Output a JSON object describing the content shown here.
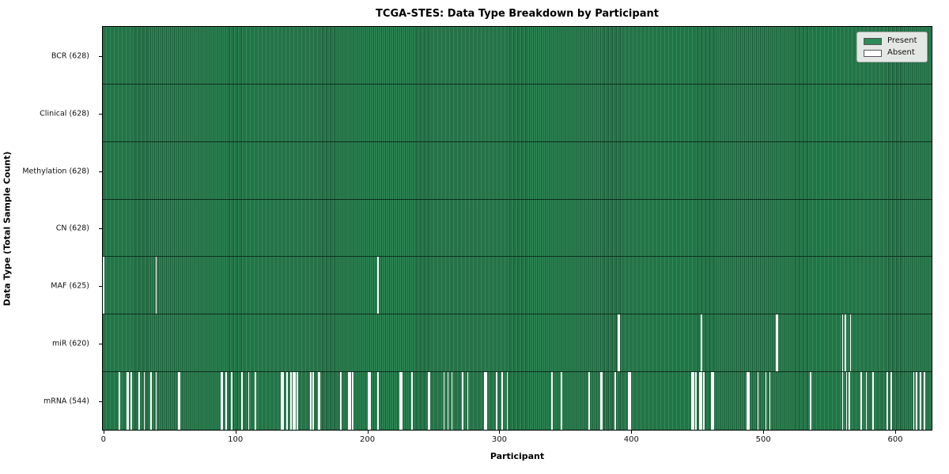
{
  "chart_data": {
    "type": "heatmap",
    "title": "TCGA-STES: Data Type Breakdown by Participant",
    "xlabel": "Participant",
    "ylabel": "Data Type (Total Sample Count)",
    "x_ticks": [
      0,
      100,
      200,
      300,
      400,
      500,
      600
    ],
    "x_range": [
      -0.5,
      627.5
    ],
    "n_participants": 628,
    "grid": false,
    "legend_position": "upper-right",
    "colors": {
      "present": "#2e8b57",
      "absent": "#ffffff",
      "bar_edge": "#1d5938",
      "legend_background": "#e4e8e4"
    },
    "legend_entries": [
      {
        "label": "Present",
        "color": "#2e8b57"
      },
      {
        "label": "Absent",
        "color": "#ffffff"
      }
    ],
    "rows": [
      {
        "label": "BCR (628)",
        "data_type": "BCR",
        "present_count": 628,
        "absent_participants": []
      },
      {
        "label": "Clinical (628)",
        "data_type": "Clinical",
        "present_count": 628,
        "absent_participants": []
      },
      {
        "label": "Methylation (628)",
        "data_type": "Methylation",
        "present_count": 628,
        "absent_participants": []
      },
      {
        "label": "CN (628)",
        "data_type": "CN",
        "present_count": 628,
        "absent_participants": []
      },
      {
        "label": "MAF (625)",
        "data_type": "MAF",
        "present_count": 625,
        "absent_participants": [
          0,
          40,
          208
        ]
      },
      {
        "label": "miR (620)",
        "data_type": "miR",
        "present_count": 620,
        "absent_participants": [
          390,
          391,
          453,
          510,
          511,
          560,
          562,
          566
        ]
      },
      {
        "label": "mRNA (544)",
        "data_type": "mRNA",
        "present_count": 544,
        "absent_participants": [
          12,
          18,
          19,
          21,
          27,
          31,
          36,
          40,
          57,
          58,
          89,
          90,
          93,
          97,
          105,
          110,
          115,
          135,
          136,
          139,
          142,
          144,
          145,
          147,
          157,
          159,
          163,
          164,
          180,
          186,
          187,
          189,
          201,
          202,
          208,
          225,
          226,
          234,
          246,
          247,
          258,
          261,
          264,
          272,
          276,
          289,
          290,
          298,
          302,
          306,
          340,
          347,
          368,
          377,
          378,
          388,
          398,
          399,
          446,
          447,
          449,
          452,
          453,
          455,
          461,
          462,
          488,
          489,
          496,
          502,
          505,
          536,
          560,
          563,
          565,
          574,
          578,
          583,
          594,
          597,
          614,
          616,
          619,
          622
        ]
      }
    ]
  }
}
